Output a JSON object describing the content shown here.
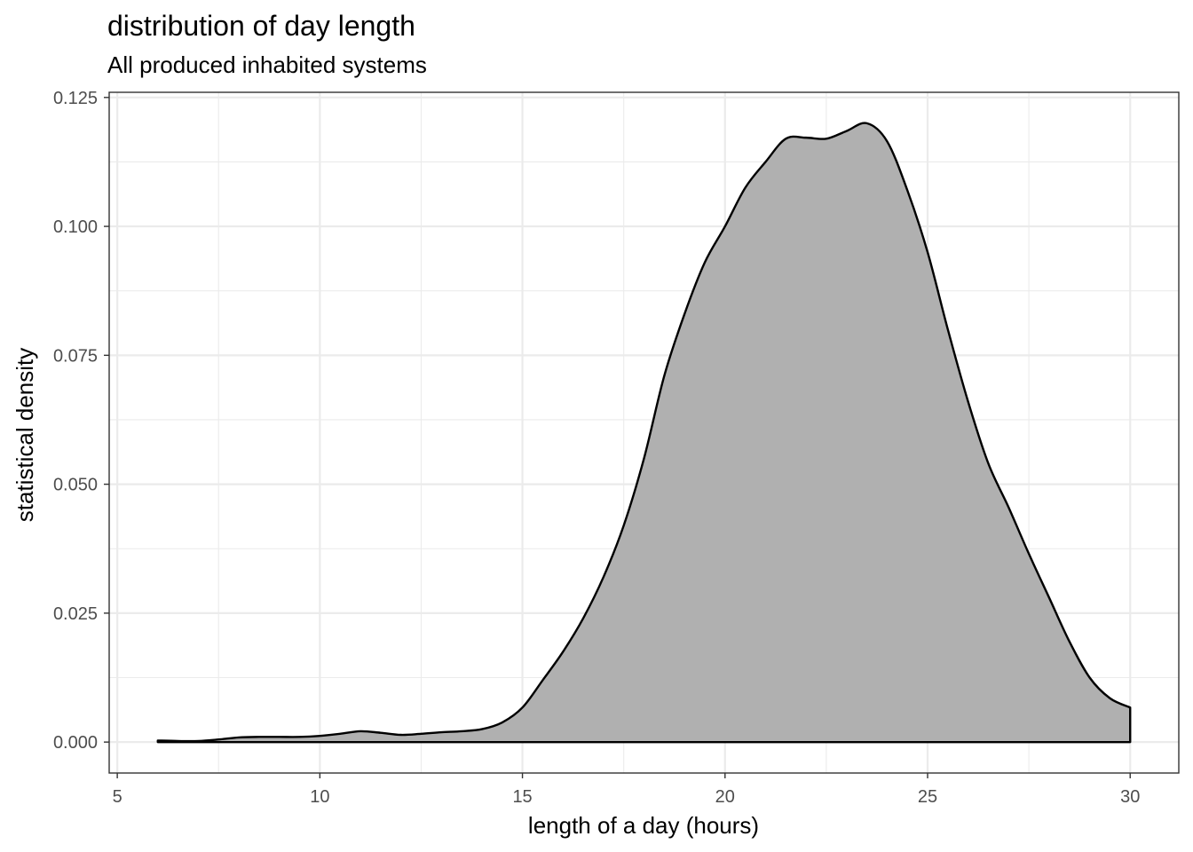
{
  "chart_data": {
    "type": "area",
    "title": "distribution of day length",
    "subtitle": "All produced inhabited systems",
    "xlabel": "length of a day (hours)",
    "ylabel": "statistical density",
    "xlim": [
      4.8,
      31.2
    ],
    "ylim": [
      -0.006,
      0.126
    ],
    "x_ticks": [
      5,
      10,
      15,
      20,
      25,
      30
    ],
    "y_ticks": [
      0.0,
      0.025,
      0.05,
      0.075,
      0.1,
      0.125
    ],
    "x_tick_labels": [
      "5",
      "10",
      "15",
      "20",
      "25",
      "30"
    ],
    "y_tick_labels": [
      "0.000",
      "0.025",
      "0.050",
      "0.075",
      "0.100",
      "0.125"
    ],
    "x_minor": [
      7.5,
      12.5,
      17.5,
      22.5,
      27.5
    ],
    "y_minor": [
      0.0125,
      0.0375,
      0.0625,
      0.0875,
      0.1125
    ],
    "grid": true,
    "fill_color": "#b0b0b0",
    "line_color": "#000000",
    "x": [
      6.0,
      6.5,
      7.0,
      7.5,
      8.0,
      8.5,
      9.0,
      9.5,
      10.0,
      10.5,
      11.0,
      11.5,
      12.0,
      12.5,
      13.0,
      13.5,
      14.0,
      14.5,
      15.0,
      15.5,
      16.0,
      16.5,
      17.0,
      17.5,
      18.0,
      18.5,
      19.0,
      19.5,
      20.0,
      20.5,
      21.0,
      21.5,
      22.0,
      22.5,
      23.0,
      23.5,
      24.0,
      24.5,
      25.0,
      25.5,
      26.0,
      26.5,
      27.0,
      27.5,
      28.0,
      28.5,
      29.0,
      29.5,
      30.0
    ],
    "y": [
      0.0003,
      0.0002,
      0.0002,
      0.0005,
      0.0009,
      0.001,
      0.001,
      0.001,
      0.0012,
      0.0016,
      0.0021,
      0.0018,
      0.0014,
      0.0016,
      0.0019,
      0.0021,
      0.0025,
      0.0038,
      0.0067,
      0.012,
      0.0175,
      0.024,
      0.032,
      0.042,
      0.055,
      0.071,
      0.083,
      0.093,
      0.1,
      0.1075,
      0.1125,
      0.117,
      0.1172,
      0.117,
      0.1185,
      0.12,
      0.1165,
      0.107,
      0.095,
      0.08,
      0.066,
      0.054,
      0.0455,
      0.0365,
      0.028,
      0.0195,
      0.0125,
      0.0085,
      0.0067
    ]
  }
}
